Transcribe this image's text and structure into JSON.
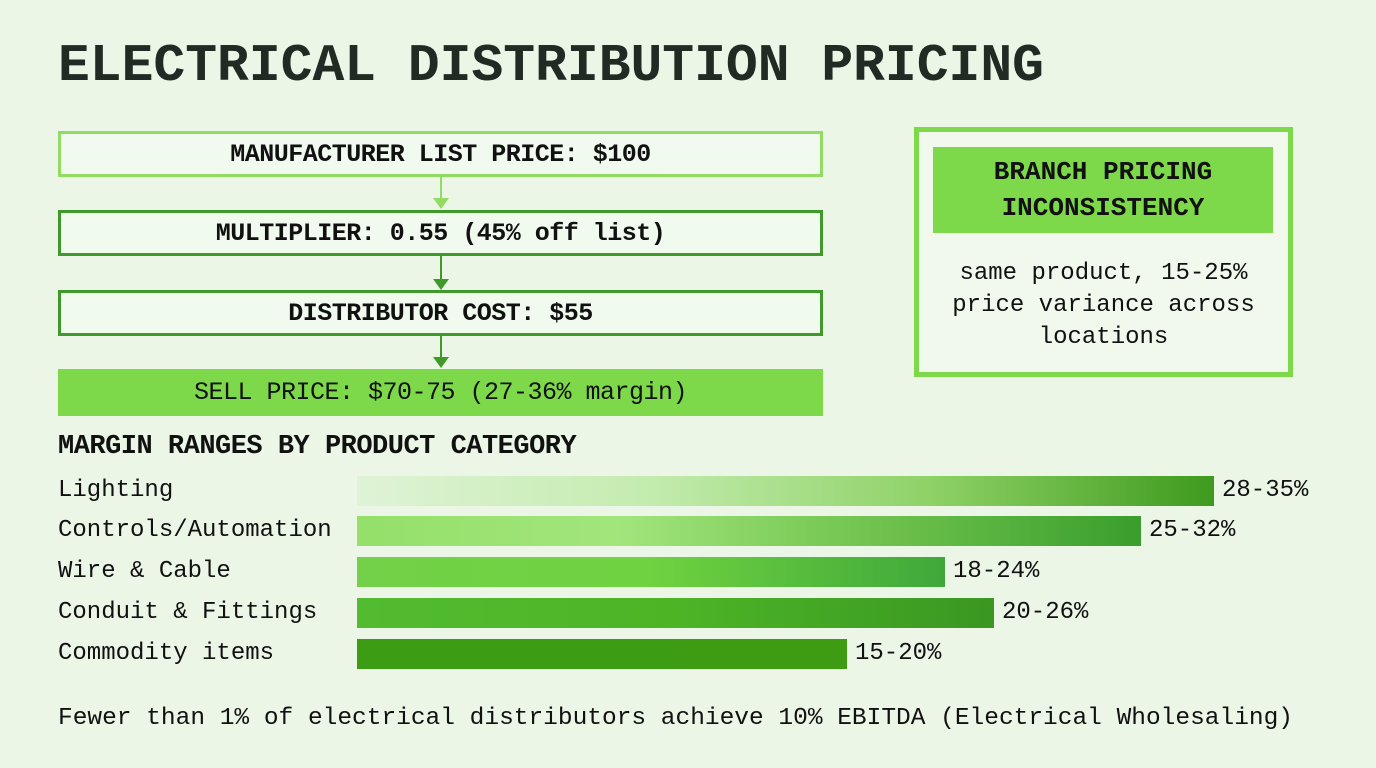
{
  "title": "ELECTRICAL DISTRIBUTION PRICING",
  "flow": {
    "steps": [
      "MANUFACTURER LIST PRICE: $100",
      "MULTIPLIER: 0.55 (45% off list)",
      "DISTRIBUTOR COST: $55",
      "SELL PRICE: $70-75 (27-36% margin)"
    ]
  },
  "side_panel": {
    "heading_line1": "BRANCH PRICING",
    "heading_line2": "INCONSISTENCY",
    "body_line1": "same product, 15-25%",
    "body_line2": "price variance across",
    "body_line3": "locations"
  },
  "colors": {
    "background": "#ebf6e7",
    "accent": "#7dd94a",
    "dark_green": "#3f9a2a"
  },
  "chart_data": {
    "type": "bar",
    "orientation": "horizontal",
    "title": "MARGIN RANGES BY PRODUCT CATEGORY",
    "xlabel": "",
    "ylabel": "",
    "unit": "% margin",
    "categories": [
      "Lighting",
      "Controls/Automation",
      "Wire & Cable",
      "Conduit & Fittings",
      "Commodity items"
    ],
    "labels": [
      "28-35%",
      "25-32%",
      "18-24%",
      "20-26%",
      "15-20%"
    ],
    "ranges": [
      [
        28,
        35
      ],
      [
        25,
        32
      ],
      [
        18,
        24
      ],
      [
        20,
        26
      ],
      [
        15,
        20
      ]
    ],
    "values": [
      35,
      32,
      24,
      26,
      20
    ],
    "xlim": [
      0,
      35
    ],
    "grid": false,
    "bar_gradients": [
      [
        "#dff3d6",
        "#c4ecb0",
        "#8fd267",
        "#3e9a1e"
      ],
      [
        "#94e06a",
        "#a2e57c",
        "#6fc24d",
        "#3a9e2c"
      ],
      [
        "#72d148",
        "#6fd240",
        "#3fa83a"
      ],
      [
        "#52bb30",
        "#4cb526",
        "#3a9722"
      ],
      [
        "#3c9c14",
        "#3d9c12"
      ]
    ]
  },
  "footer": "Fewer than 1% of electrical distributors achieve 10% EBITDA (Electrical Wholesaling)"
}
